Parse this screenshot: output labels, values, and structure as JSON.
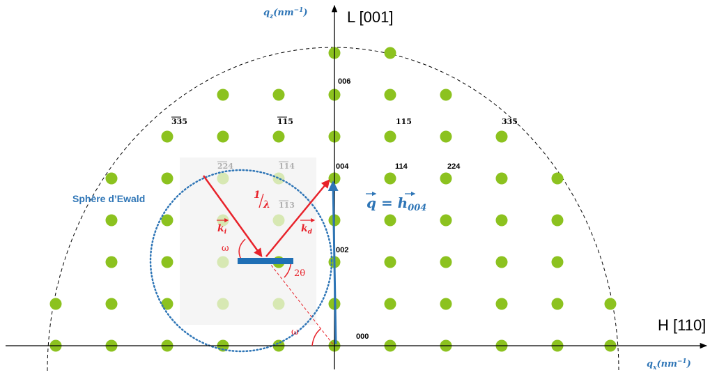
{
  "axes": {
    "vertical_label": "L [001]",
    "horizontal_label": "H [110]",
    "qz_label": "q_z(nm^-1)",
    "qz_main": "q",
    "qz_sub": "z",
    "qz_unit": "(nm",
    "qz_exp": "−1",
    "qz_close": ")",
    "qx_main": "q",
    "qx_sub": "x",
    "qx_unit": "(nm",
    "qx_exp": "−1",
    "qx_close": ")"
  },
  "ewald_label": "Sphère d’Ewald",
  "reflections": {
    "r000": "000",
    "r002": "002",
    "r004": "004",
    "r006": "006",
    "r114": "114",
    "r224": "224",
    "r115": "115",
    "r335": "335",
    "rm115": "115",
    "rm335": "335",
    "rm224": "224",
    "rm114": "114",
    "rm113": "113"
  },
  "vectors": {
    "ki": "k",
    "ki_sub": "i",
    "kd": "k",
    "kd_sub": "d",
    "inv_lambda_num": "1",
    "inv_lambda_den": "λ",
    "q_eq": "q = h",
    "q_sub": "004"
  },
  "angles": {
    "omega_top": "ω",
    "omega_bottom": "ω",
    "two_theta": "2θ"
  },
  "colors": {
    "lattice_point": "#8cc21f",
    "lattice_point_faint": "#d7e8b3",
    "ewald_circle": "#2e75b6",
    "q_vector": "#2e75b6",
    "k_vectors": "#e8222a",
    "sample": "#1f6fb5",
    "axis": "#000000"
  }
}
